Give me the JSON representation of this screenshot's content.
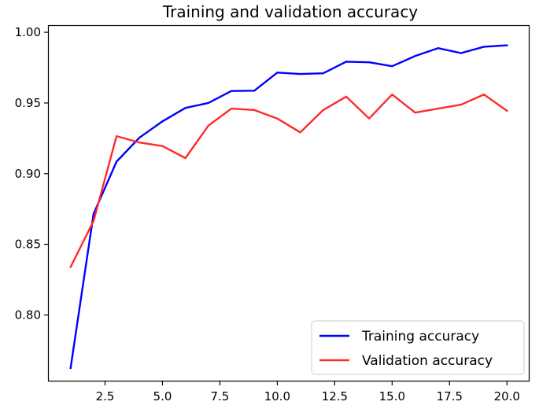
{
  "chart_data": {
    "type": "line",
    "title": "Training and validation accuracy",
    "xlabel": "",
    "ylabel": "",
    "xlim": [
      0.05,
      20.95
    ],
    "ylim": [
      0.7535,
      1.0045
    ],
    "xticks": [
      2.5,
      5.0,
      7.5,
      10.0,
      12.5,
      15.0,
      17.5,
      20.0
    ],
    "xtick_labels": [
      "2.5",
      "5.0",
      "7.5",
      "10.0",
      "12.5",
      "15.0",
      "17.5",
      "20.0"
    ],
    "yticks": [
      0.8,
      0.85,
      0.9,
      0.95,
      1.0
    ],
    "ytick_labels": [
      "0.80",
      "0.85",
      "0.90",
      "0.95",
      "1.00"
    ],
    "grid": false,
    "legend_position": "lower-right",
    "x": [
      1,
      2,
      3,
      4,
      5,
      6,
      7,
      8,
      9,
      10,
      11,
      12,
      13,
      14,
      15,
      16,
      17,
      18,
      19,
      20
    ],
    "series": [
      {
        "name": "Training accuracy",
        "color": "#0000ff",
        "values": [
          0.7625,
          0.8715,
          0.9085,
          0.9255,
          0.937,
          0.9465,
          0.95,
          0.9585,
          0.9587,
          0.9715,
          0.9705,
          0.971,
          0.9792,
          0.9788,
          0.976,
          0.9832,
          0.9888,
          0.9853,
          0.9898,
          0.9908
        ]
      },
      {
        "name": "Validation accuracy",
        "color": "#ff2a2a",
        "values": [
          0.834,
          0.8665,
          0.9265,
          0.922,
          0.9195,
          0.911,
          0.934,
          0.946,
          0.945,
          0.939,
          0.9292,
          0.945,
          0.9545,
          0.939,
          0.956,
          0.9432,
          0.946,
          0.9488,
          0.956,
          0.9445
        ]
      }
    ]
  }
}
